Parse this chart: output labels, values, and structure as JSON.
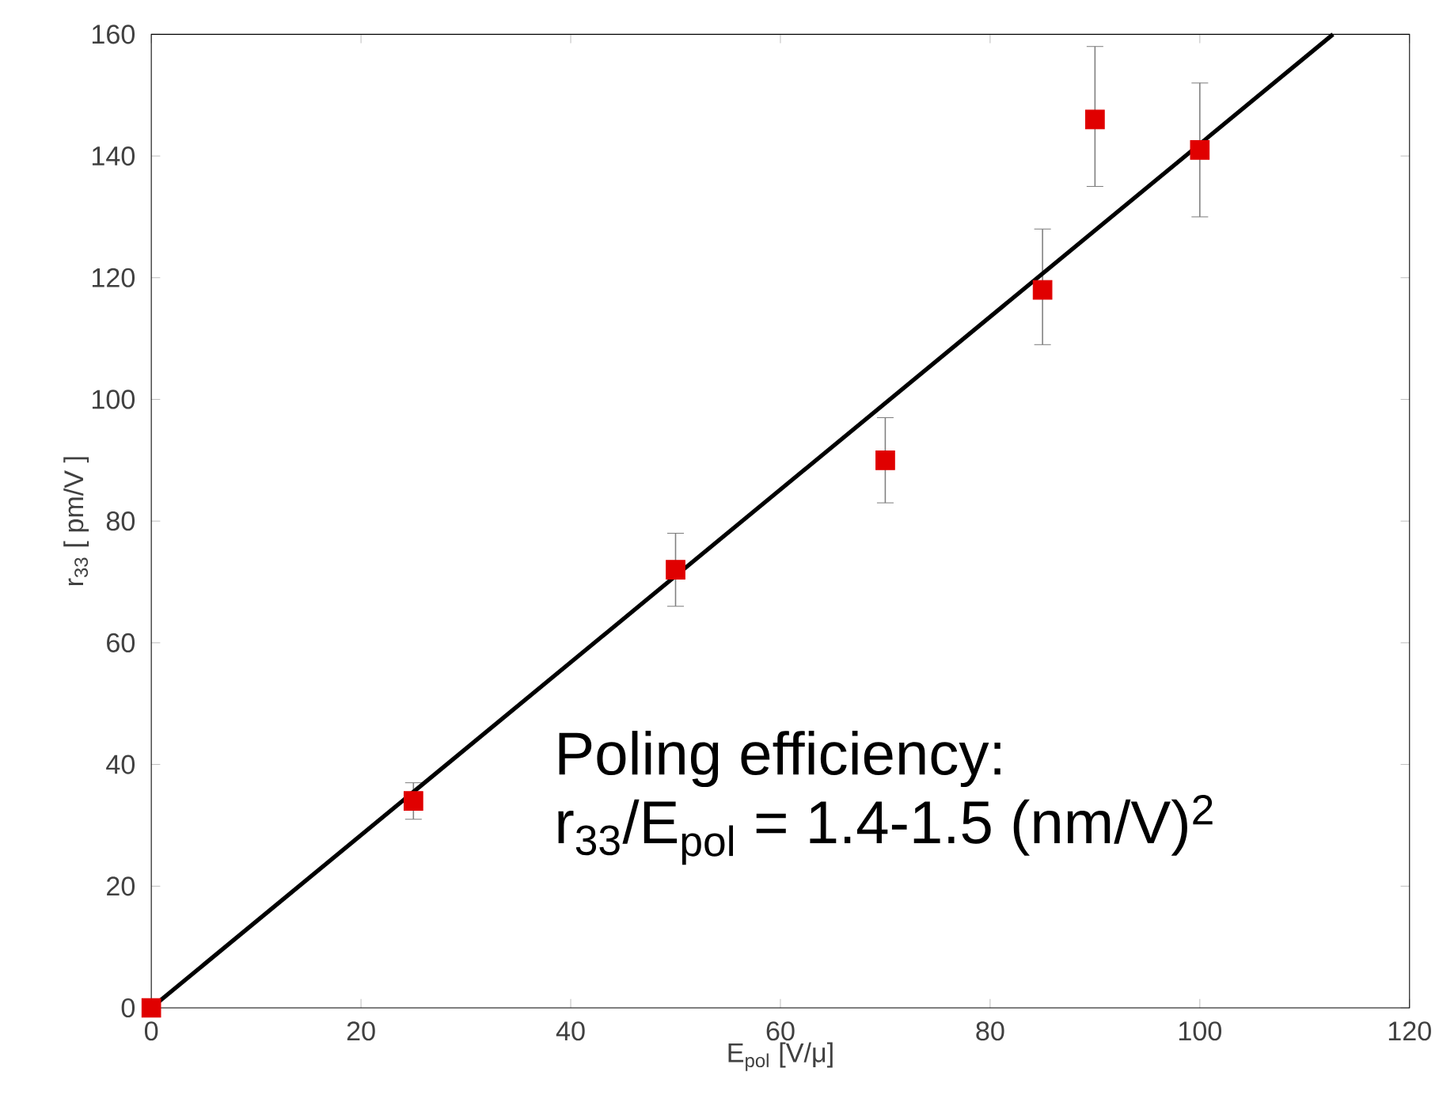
{
  "chart_data": {
    "type": "scatter",
    "xlabel": "E$_{pol}$  [V/μ]",
    "ylabel": "r$_{33}$  [ pm/V ]",
    "annotations": [
      "Poling efficiency:",
      "r$_{33}$/E$_{pol}$ = 1.4-1.5 (nm/V)$^{2}$"
    ],
    "x": [
      0,
      25,
      50,
      70,
      85,
      90,
      100
    ],
    "series": [
      {
        "color": "#e00000",
        "marker": "square",
        "values": [
          0,
          34,
          72,
          90,
          118,
          146,
          141
        ],
        "errors": [
          null,
          [
            31,
            37
          ],
          [
            66,
            78
          ],
          [
            83,
            97
          ],
          [
            109,
            128
          ],
          [
            135,
            158
          ],
          [
            130,
            152
          ]
        ]
      },
      {
        "type": "line",
        "color": "#000000",
        "x": [
          0,
          112.7
        ],
        "values": [
          0,
          160
        ],
        "line_style": "solid"
      }
    ],
    "xlim": [
      0,
      120
    ],
    "ylim": [
      0,
      160
    ],
    "xticks": [
      0,
      20,
      40,
      60,
      80,
      100,
      120
    ],
    "yticks": [
      0,
      20,
      40,
      60,
      80,
      100,
      120,
      140,
      160
    ],
    "grid": false
  }
}
